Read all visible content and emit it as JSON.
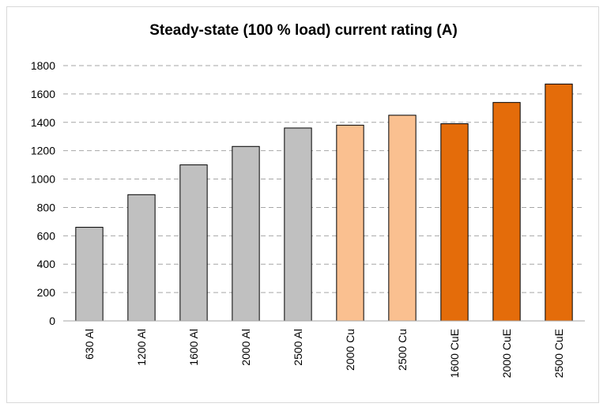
{
  "chart_data": {
    "type": "bar",
    "title": "Steady-state (100 % load) current rating (A)",
    "xlabel": "",
    "ylabel": "",
    "ylim": [
      0,
      1800
    ],
    "yticks": [
      0,
      200,
      400,
      600,
      800,
      1000,
      1200,
      1400,
      1600,
      1800
    ],
    "grid": true,
    "categories": [
      "630 Al",
      "1200 Al",
      "1600 Al",
      "2000 Al",
      "2500 Al",
      "2000 Cu",
      "2500 Cu",
      "1600 CuE",
      "2000 CuE",
      "2500 CuE"
    ],
    "values": [
      660,
      890,
      1100,
      1230,
      1360,
      1380,
      1450,
      1390,
      1540,
      1670
    ],
    "colors": [
      "#c0c0c0",
      "#c0c0c0",
      "#c0c0c0",
      "#c0c0c0",
      "#c0c0c0",
      "#fac090",
      "#fac090",
      "#e46c0a",
      "#e46c0a",
      "#e46c0a"
    ]
  }
}
